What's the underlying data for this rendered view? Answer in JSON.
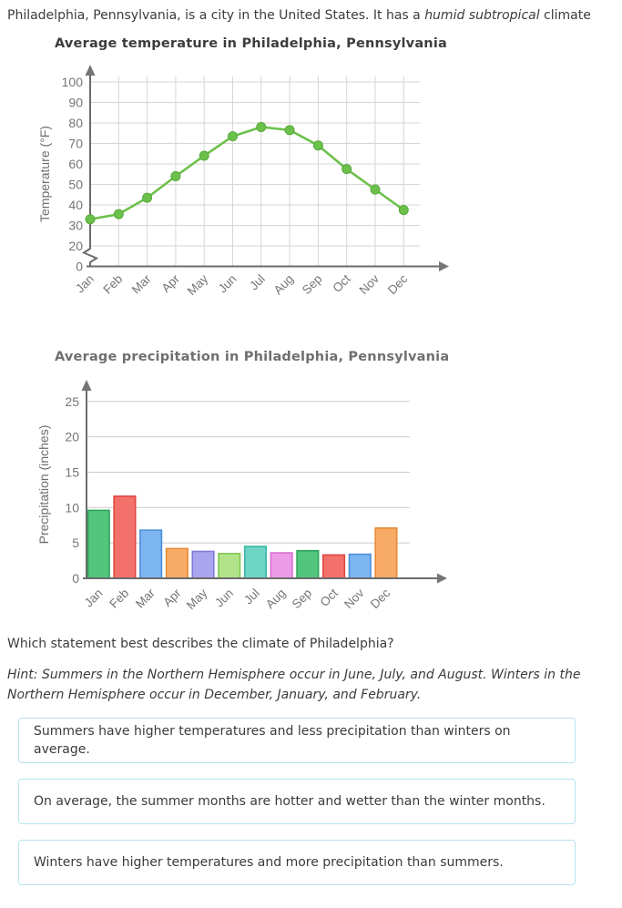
{
  "intro": {
    "text_before_italic": "Philadelphia, Pennsylvania, is a city in the United States. It has a ",
    "italic_text": "humid subtropical",
    "text_after_italic": " climate"
  },
  "question": "Which statement best describes the climate of Philadelphia?",
  "hint_lines": [
    "Hint: Summers in the Northern Hemisphere occur in June, July, and August. Winters in the",
    "Northern Hemisphere occur in December, January, and February."
  ],
  "options": [
    "Summers have higher temperatures and less precipitation than winters on average.",
    "On average, the summer months are hotter and wetter than the winter months.",
    "Winters have higher temperatures and more precipitation than summers."
  ],
  "colors": {
    "option_border": "#b7e3ef",
    "body_text": "#3b3b3b",
    "axis": "#6b6b6b",
    "arrow": "#757575",
    "tick_label": "#757575",
    "axis_title": "#6e6e6e",
    "grid_temperature": "#d6d6d6",
    "grid_precipitation": "#cbcbcb"
  },
  "chart_data": [
    {
      "type": "line",
      "title": "Average temperature in Philadelphia, Pennsylvania",
      "title_color": "#3d3d3d",
      "xlabel": "",
      "ylabel": "Temperature (°F)",
      "categories": [
        "Jan",
        "Feb",
        "Mar",
        "Apr",
        "May",
        "Jun",
        "Jul",
        "Aug",
        "Sep",
        "Oct",
        "Nov",
        "Dec"
      ],
      "values": [
        33,
        35.5,
        43.5,
        54,
        64,
        73.5,
        78,
        76.5,
        69,
        57.5,
        47.5,
        37.5
      ],
      "yticks": [
        0,
        20,
        30,
        40,
        50,
        60,
        70,
        80,
        90,
        100
      ],
      "ylim": [
        0,
        105
      ],
      "axis_break_between": [
        0,
        20
      ],
      "grid": "both",
      "legend": "none",
      "line_color": "#6cc14b",
      "point_color": "#6cc14b",
      "point_border_color": "#57a83b"
    },
    {
      "type": "bar",
      "title": "Average precipitation in Philadelphia, Pennsylvania",
      "title_color": "#6f6f6f",
      "xlabel": "",
      "ylabel": "Precipitation (inches)",
      "categories": [
        "Jan",
        "Feb",
        "Mar",
        "Apr",
        "May",
        "Jun",
        "Jul",
        "Aug",
        "Sep",
        "Oct",
        "Nov",
        "Dec"
      ],
      "values": [
        9.6,
        11.6,
        6.8,
        4.2,
        3.8,
        3.5,
        4.5,
        3.6,
        3.9,
        3.3,
        3.4,
        7.1
      ],
      "yticks": [
        0,
        5,
        10,
        15,
        20,
        25
      ],
      "ylim": [
        0,
        27
      ],
      "grid": "horizontal",
      "legend": "none",
      "bar_fill_colors": [
        "#54c57d",
        "#f3716b",
        "#7cb5f2",
        "#f8ab66",
        "#aaa6ee",
        "#b2e38a",
        "#6fd5c7",
        "#ec9ce7",
        "#54c57d",
        "#f3716b",
        "#7cb5f2",
        "#f8ab66"
      ],
      "bar_border_colors": [
        "#2aa458",
        "#e0463f",
        "#4b8fd9",
        "#e68a36",
        "#7f78dd",
        "#81c551",
        "#3ab7a3",
        "#d96fd1",
        "#2aa458",
        "#e0463f",
        "#4b8fd9",
        "#e68a36"
      ]
    }
  ]
}
